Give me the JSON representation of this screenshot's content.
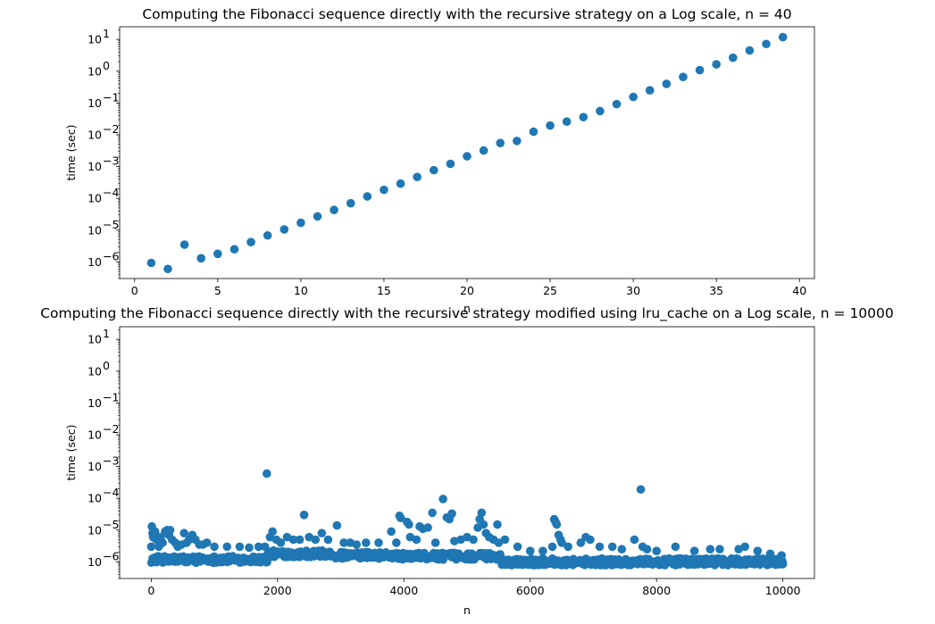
{
  "colors": {
    "marker": "#1f77b4",
    "axis": "#000000",
    "background": "#ffffff"
  },
  "chart_data": [
    {
      "type": "scatter",
      "title": "Computing the Fibonacci sequence directly with the recursive strategy on a Log scale, n = 40",
      "xlabel": "n",
      "ylabel": "time (sec)",
      "yscale": "log",
      "grid": false,
      "xlim": [
        -0.9,
        40.9
      ],
      "ylim": [
        3e-07,
        25
      ],
      "xticks": [
        0,
        5,
        10,
        15,
        20,
        25,
        30,
        35,
        40
      ],
      "yticks": [
        {
          "value": 1e-06,
          "base": "10",
          "exp": "−6"
        },
        {
          "value": 1e-05,
          "base": "10",
          "exp": "−5"
        },
        {
          "value": 0.0001,
          "base": "10",
          "exp": "−4"
        },
        {
          "value": 0.001,
          "base": "10",
          "exp": "−3"
        },
        {
          "value": 0.01,
          "base": "10",
          "exp": "−2"
        },
        {
          "value": 0.1,
          "base": "10",
          "exp": "−1"
        },
        {
          "value": 1,
          "base": "10",
          "exp": "0"
        },
        {
          "value": 10,
          "base": "10",
          "exp": "1"
        }
      ],
      "points": [
        [
          1,
          9.3e-07
        ],
        [
          2,
          6e-07
        ],
        [
          3,
          3.5e-06
        ],
        [
          4,
          1.3e-06
        ],
        [
          5,
          1.8e-06
        ],
        [
          6,
          2.5e-06
        ],
        [
          7,
          4.2e-06
        ],
        [
          8,
          6.8e-06
        ],
        [
          9,
          1.05e-05
        ],
        [
          10,
          1.7e-05
        ],
        [
          11,
          2.7e-05
        ],
        [
          12,
          4.3e-05
        ],
        [
          13,
          7e-05
        ],
        [
          14,
          0.000115
        ],
        [
          15,
          0.000185
        ],
        [
          16,
          0.00029
        ],
        [
          17,
          0.00047
        ],
        [
          18,
          0.00077
        ],
        [
          19,
          0.00122
        ],
        [
          20,
          0.0021
        ],
        [
          21,
          0.0032
        ],
        [
          22,
          0.0055
        ],
        [
          23,
          0.0064
        ],
        [
          24,
          0.0125
        ],
        [
          25,
          0.0195
        ],
        [
          26,
          0.026
        ],
        [
          27,
          0.036
        ],
        [
          28,
          0.056
        ],
        [
          29,
          0.092
        ],
        [
          30,
          0.155
        ],
        [
          31,
          0.25
        ],
        [
          32,
          0.4
        ],
        [
          33,
          0.66
        ],
        [
          34,
          1.08
        ],
        [
          35,
          1.65
        ],
        [
          36,
          2.65
        ],
        [
          37,
          4.5
        ],
        [
          38,
          7.2
        ],
        [
          39,
          11.8
        ]
      ]
    },
    {
      "type": "scatter",
      "title": "Computing the Fibonacci sequence directly with the recursive strategy modified using lru_cache on a Log scale, n = 10000",
      "xlabel": "n",
      "ylabel": "time (sec)",
      "yscale": "log",
      "grid": false,
      "xlim": [
        -500,
        10500
      ],
      "ylim": [
        3e-07,
        25
      ],
      "xticks": [
        0,
        2000,
        4000,
        6000,
        8000,
        10000
      ],
      "yticks": [
        {
          "value": 1e-06,
          "base": "10",
          "exp": "−6"
        },
        {
          "value": 1e-05,
          "base": "10",
          "exp": "−5"
        },
        {
          "value": 0.0001,
          "base": "10",
          "exp": "−4"
        },
        {
          "value": 0.001,
          "base": "10",
          "exp": "−3"
        },
        {
          "value": 0.01,
          "base": "10",
          "exp": "−2"
        },
        {
          "value": 0.1,
          "base": "10",
          "exp": "−1"
        },
        {
          "value": 1,
          "base": "10",
          "exp": "0"
        },
        {
          "value": 10,
          "base": "10",
          "exp": "1"
        }
      ],
      "baseline_bands": [
        {
          "x_from": 0,
          "x_to": 1850,
          "y": 1.2e-06
        },
        {
          "x_from": 1850,
          "x_to": 2900,
          "y": 1.8e-06
        },
        {
          "x_from": 2900,
          "x_to": 3900,
          "y": 1.6e-06
        },
        {
          "x_from": 3900,
          "x_to": 5550,
          "y": 1.5e-06
        },
        {
          "x_from": 5550,
          "x_to": 10000,
          "y": 1e-06
        }
      ],
      "points": [
        [
          0,
          3e-06
        ],
        [
          10,
          1.3e-05
        ],
        [
          20,
          8e-06
        ],
        [
          30,
          6e-06
        ],
        [
          60,
          9e-06
        ],
        [
          80,
          5e-06
        ],
        [
          120,
          3e-06
        ],
        [
          150,
          6e-06
        ],
        [
          180,
          4e-06
        ],
        [
          220,
          9e-06
        ],
        [
          250,
          1e-05
        ],
        [
          280,
          7e-06
        ],
        [
          300,
          1e-05
        ],
        [
          330,
          5e-06
        ],
        [
          380,
          4e-06
        ],
        [
          420,
          3e-06
        ],
        [
          480,
          3.5e-06
        ],
        [
          520,
          8e-06
        ],
        [
          560,
          4e-06
        ],
        [
          600,
          5e-06
        ],
        [
          650,
          7e-06
        ],
        [
          700,
          5e-06
        ],
        [
          760,
          3.5e-06
        ],
        [
          820,
          3.5e-06
        ],
        [
          880,
          4e-06
        ],
        [
          1000,
          3e-06
        ],
        [
          1200,
          3e-06
        ],
        [
          1400,
          3e-06
        ],
        [
          1550,
          2.8e-06
        ],
        [
          1700,
          3e-06
        ],
        [
          1800,
          3e-06
        ],
        [
          1830,
          0.0006
        ],
        [
          1880,
          6e-06
        ],
        [
          1920,
          9e-06
        ],
        [
          1980,
          5e-06
        ],
        [
          2050,
          4e-06
        ],
        [
          2150,
          6e-06
        ],
        [
          2250,
          5e-06
        ],
        [
          2350,
          5e-06
        ],
        [
          2420,
          3e-05
        ],
        [
          2500,
          6e-06
        ],
        [
          2600,
          5e-06
        ],
        [
          2700,
          8e-06
        ],
        [
          2800,
          5e-06
        ],
        [
          2940,
          1.4e-05
        ],
        [
          3050,
          4e-06
        ],
        [
          3150,
          4e-06
        ],
        [
          3250,
          3.5e-06
        ],
        [
          3400,
          4e-06
        ],
        [
          3600,
          4e-06
        ],
        [
          3800,
          9e-06
        ],
        [
          3880,
          4e-06
        ],
        [
          3930,
          2.8e-05
        ],
        [
          3950,
          2.4e-05
        ],
        [
          4050,
          1.8e-05
        ],
        [
          4080,
          1.5e-05
        ],
        [
          4100,
          6e-06
        ],
        [
          4200,
          5e-06
        ],
        [
          4250,
          1.3e-05
        ],
        [
          4300,
          1.1e-05
        ],
        [
          4380,
          1.2e-05
        ],
        [
          4450,
          3.5e-05
        ],
        [
          4500,
          4e-06
        ],
        [
          4620,
          9.5e-05
        ],
        [
          4680,
          2.5e-05
        ],
        [
          4720,
          2.2e-05
        ],
        [
          4760,
          3.3e-05
        ],
        [
          4800,
          4.5e-06
        ],
        [
          4900,
          5e-06
        ],
        [
          5000,
          6e-06
        ],
        [
          5100,
          5e-06
        ],
        [
          5170,
          1.2e-05
        ],
        [
          5200,
          2.2e-05
        ],
        [
          5230,
          3.5e-05
        ],
        [
          5260,
          1.5e-05
        ],
        [
          5300,
          8e-06
        ],
        [
          5350,
          6e-06
        ],
        [
          5420,
          5e-06
        ],
        [
          5480,
          1.5e-05
        ],
        [
          5500,
          4e-06
        ],
        [
          5600,
          5e-06
        ],
        [
          5800,
          3e-06
        ],
        [
          6000,
          2.2e-06
        ],
        [
          6200,
          2.2e-06
        ],
        [
          6350,
          3e-06
        ],
        [
          6380,
          2.2e-05
        ],
        [
          6400,
          1.8e-05
        ],
        [
          6420,
          1.5e-05
        ],
        [
          6450,
          7e-06
        ],
        [
          6480,
          5e-06
        ],
        [
          6500,
          4e-06
        ],
        [
          6600,
          3e-06
        ],
        [
          6800,
          4e-06
        ],
        [
          6880,
          6e-06
        ],
        [
          6950,
          5e-06
        ],
        [
          7100,
          3e-06
        ],
        [
          7300,
          3e-06
        ],
        [
          7450,
          2.5e-06
        ],
        [
          7650,
          5e-06
        ],
        [
          7750,
          0.00019
        ],
        [
          7780,
          3e-06
        ],
        [
          7850,
          2.5e-06
        ],
        [
          8000,
          2.2e-06
        ],
        [
          8300,
          3e-06
        ],
        [
          8600,
          2.2e-06
        ],
        [
          8850,
          2.5e-06
        ],
        [
          9000,
          2.5e-06
        ],
        [
          9300,
          2.5e-06
        ],
        [
          9400,
          3e-06
        ],
        [
          9600,
          2.2e-06
        ],
        [
          9800,
          1.8e-06
        ],
        [
          9980,
          1.6e-06
        ],
        [
          10000,
          8.5e-07
        ]
      ]
    }
  ]
}
